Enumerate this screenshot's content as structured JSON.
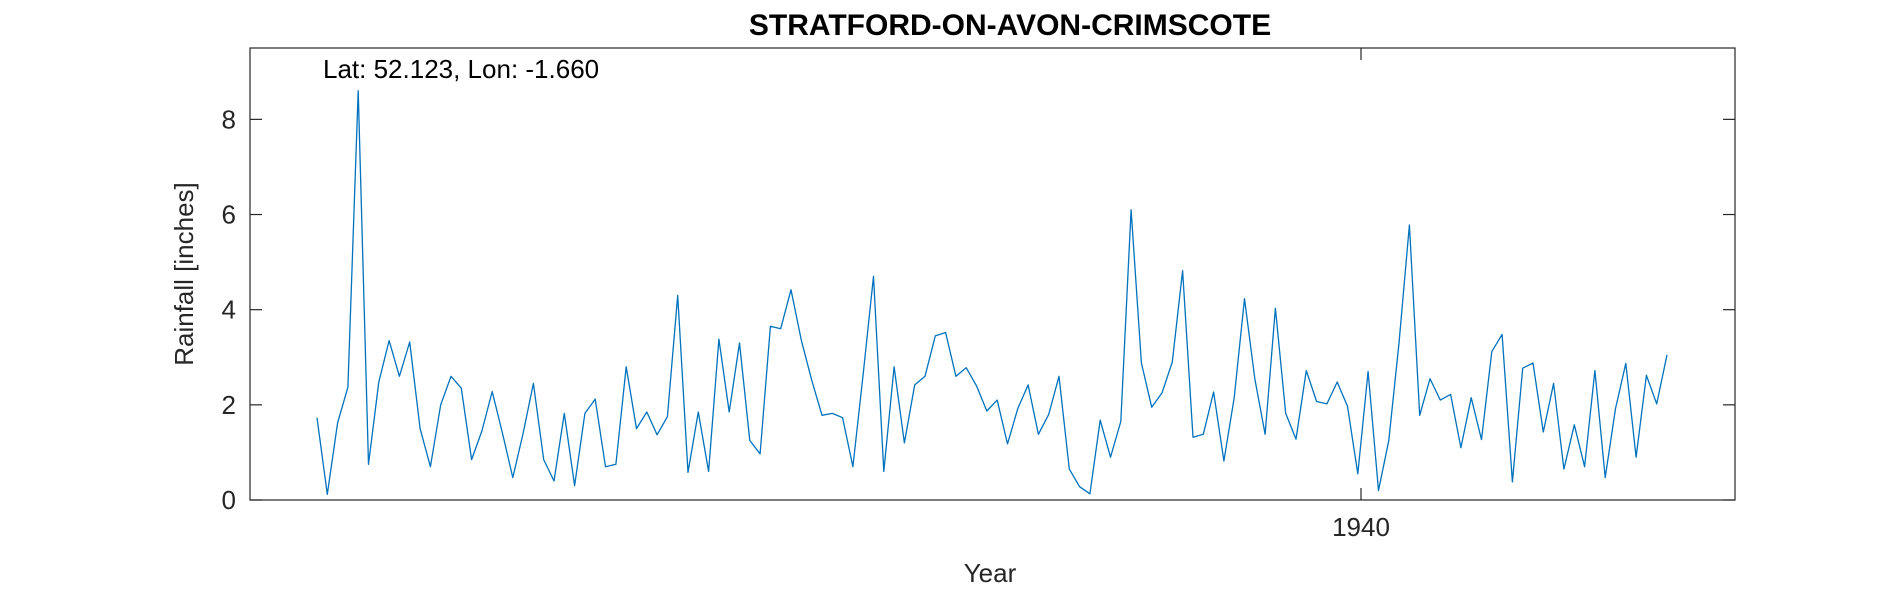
{
  "chart_data": {
    "type": "line",
    "title": "STRATFORD-ON-AVON-CRIMSCOTE",
    "annotation": "Lat: 52.123, Lon: -1.660",
    "xlabel": "Year",
    "ylabel": "Rainfall [inches]",
    "ylim": [
      0,
      9.5
    ],
    "yticks": [
      0,
      2,
      4,
      6,
      8
    ],
    "xticks": [
      {
        "label": "1940"
      }
    ],
    "grid": false,
    "legend": "none",
    "line_color": "#0072BD",
    "series": [
      {
        "values": [
          1.73,
          0.12,
          1.62,
          2.37,
          8.6,
          0.75,
          2.48,
          3.35,
          2.6,
          3.32,
          1.5,
          0.7,
          2.0,
          2.6,
          2.35,
          0.85,
          1.45,
          2.28,
          1.4,
          0.47,
          1.4,
          2.45,
          0.85,
          0.4,
          1.82,
          0.3,
          1.82,
          2.12,
          0.7,
          0.75,
          2.8,
          1.5,
          1.85,
          1.37,
          1.75,
          4.3,
          0.58,
          1.85,
          0.6,
          3.38,
          1.85,
          3.3,
          1.25,
          0.97,
          3.65,
          3.6,
          4.42,
          3.35,
          2.52,
          1.78,
          1.82,
          1.73,
          0.7,
          2.65,
          4.7,
          0.6,
          2.8,
          1.2,
          2.42,
          2.6,
          3.45,
          3.52,
          2.6,
          2.78,
          2.4,
          1.87,
          2.1,
          1.18,
          1.92,
          2.42,
          1.38,
          1.8,
          2.6,
          0.65,
          0.28,
          0.13,
          1.68,
          0.9,
          1.65,
          6.1,
          2.88,
          1.95,
          2.25,
          2.9,
          4.82,
          1.32,
          1.38,
          2.27,
          0.82,
          2.15,
          4.23,
          2.55,
          1.38,
          4.03,
          1.82,
          1.28,
          2.72,
          2.07,
          2.02,
          2.48,
          1.97,
          0.55,
          2.7,
          0.2,
          1.25,
          3.32,
          5.78,
          1.78,
          2.55,
          2.1,
          2.22,
          1.1,
          2.15,
          1.27,
          3.12,
          3.48,
          0.38,
          2.77,
          2.88,
          1.43,
          2.45,
          0.65,
          1.58,
          0.7,
          2.72,
          0.47,
          1.92,
          2.87,
          0.9,
          2.62,
          2.02,
          3.05
        ]
      }
    ]
  }
}
